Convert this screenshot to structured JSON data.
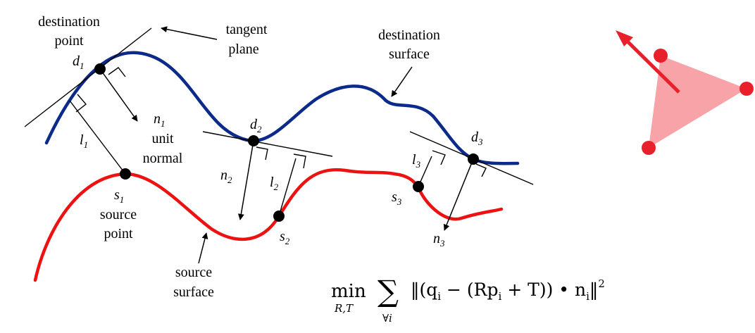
{
  "colors": {
    "destination_surface": "#0b2a8a",
    "source_surface": "#ee1111",
    "points": "#000000",
    "triangle_fill": "#f7a3a8",
    "triangle_vertex": "#e8202c",
    "arrow": "#e8202c"
  },
  "labels": {
    "destination_point_1": "destination",
    "destination_point_2": "point",
    "tangent_plane_1": "tangent",
    "tangent_plane_2": "plane",
    "destination_surface_1": "destination",
    "destination_surface_2": "surface",
    "unit_normal_1": "unit",
    "unit_normal_2": "normal",
    "source_point_1": "source",
    "source_point_2": "point",
    "source_surface_1": "source",
    "source_surface_2": "surface"
  },
  "symbols": {
    "d1": {
      "base": "d",
      "sub": "1"
    },
    "d2": {
      "base": "d",
      "sub": "2"
    },
    "d3": {
      "base": "d",
      "sub": "3"
    },
    "s1": {
      "base": "s",
      "sub": "1"
    },
    "s2": {
      "base": "s",
      "sub": "2"
    },
    "s3": {
      "base": "s",
      "sub": "3"
    },
    "n1": {
      "base": "n",
      "sub": "1"
    },
    "n2": {
      "base": "n",
      "sub": "2"
    },
    "n3": {
      "base": "n",
      "sub": "3"
    },
    "l1": {
      "base": "l",
      "sub": "1"
    },
    "l2": {
      "base": "l",
      "sub": "2"
    },
    "l3": {
      "base": "l",
      "sub": "3"
    }
  },
  "formula": {
    "min": "min",
    "min_sub": "R,T",
    "sum": "∑",
    "sum_sub": "∀i",
    "body": "‖(q",
    "q_sub": "i",
    "mid": " − (Rp",
    "p_sub": "i",
    "tail": " + T)) • n",
    "n_sub": "i",
    "close": "‖",
    "exp": "2"
  }
}
